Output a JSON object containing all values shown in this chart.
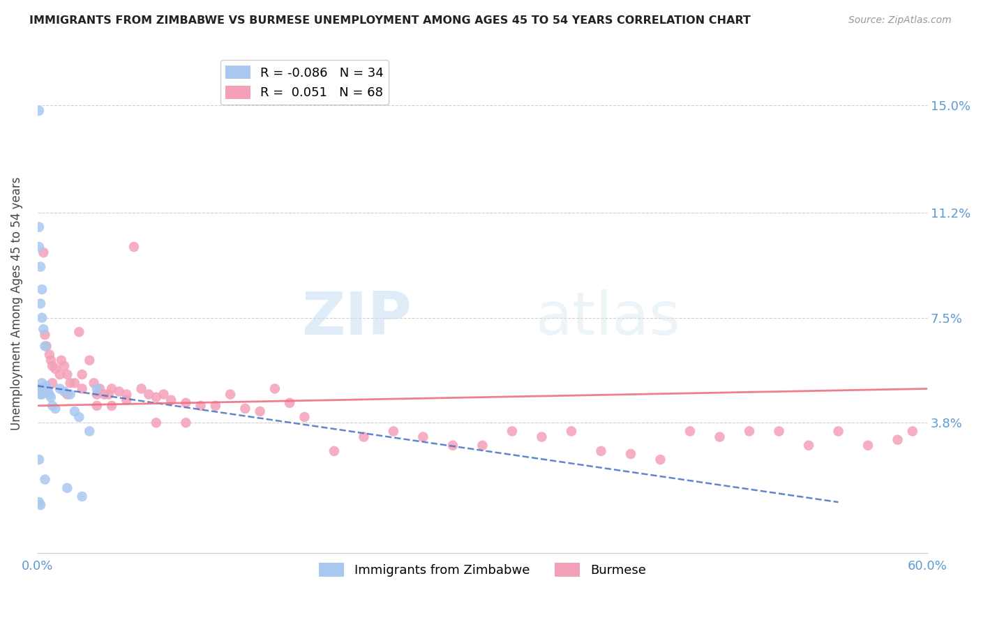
{
  "title": "IMMIGRANTS FROM ZIMBABWE VS BURMESE UNEMPLOYMENT AMONG AGES 45 TO 54 YEARS CORRELATION CHART",
  "source": "Source: ZipAtlas.com",
  "ylabel": "Unemployment Among Ages 45 to 54 years",
  "ytick_labels": [
    "15.0%",
    "11.2%",
    "7.5%",
    "3.8%"
  ],
  "ytick_values": [
    0.15,
    0.112,
    0.075,
    0.038
  ],
  "xlim": [
    0.0,
    0.6
  ],
  "ylim": [
    -0.008,
    0.168
  ],
  "r_zimbabwe": -0.086,
  "n_zimbabwe": 34,
  "r_burmese": 0.051,
  "n_burmese": 68,
  "color_zimbabwe": "#a8c8f0",
  "color_burmese": "#f4a0b8",
  "line_color_zimbabwe": "#4472c4",
  "line_color_burmese": "#f07080",
  "watermark_zip": "ZIP",
  "watermark_atlas": "atlas",
  "legend_label_zimbabwe": "Immigrants from Zimbabwe",
  "legend_label_burmese": "Burmese",
  "zimbabwe_x": [
    0.001,
    0.001,
    0.001,
    0.001,
    0.001,
    0.002,
    0.002,
    0.002,
    0.002,
    0.002,
    0.002,
    0.003,
    0.003,
    0.003,
    0.003,
    0.004,
    0.004,
    0.005,
    0.005,
    0.006,
    0.007,
    0.008,
    0.009,
    0.01,
    0.012,
    0.015,
    0.018,
    0.02,
    0.022,
    0.025,
    0.028,
    0.03,
    0.035,
    0.04
  ],
  "zimbabwe_y": [
    0.148,
    0.107,
    0.1,
    0.025,
    0.01,
    0.093,
    0.08,
    0.05,
    0.049,
    0.048,
    0.009,
    0.085,
    0.075,
    0.052,
    0.048,
    0.071,
    0.05,
    0.065,
    0.018,
    0.051,
    0.049,
    0.048,
    0.047,
    0.044,
    0.043,
    0.05,
    0.049,
    0.015,
    0.048,
    0.042,
    0.04,
    0.012,
    0.035,
    0.05
  ],
  "burmese_x": [
    0.004,
    0.005,
    0.006,
    0.008,
    0.009,
    0.01,
    0.012,
    0.015,
    0.016,
    0.018,
    0.02,
    0.022,
    0.025,
    0.028,
    0.03,
    0.035,
    0.038,
    0.04,
    0.042,
    0.045,
    0.048,
    0.05,
    0.055,
    0.06,
    0.065,
    0.07,
    0.075,
    0.08,
    0.085,
    0.09,
    0.1,
    0.11,
    0.12,
    0.13,
    0.14,
    0.15,
    0.16,
    0.17,
    0.18,
    0.2,
    0.22,
    0.24,
    0.26,
    0.28,
    0.3,
    0.32,
    0.34,
    0.36,
    0.38,
    0.4,
    0.42,
    0.44,
    0.46,
    0.48,
    0.5,
    0.52,
    0.54,
    0.56,
    0.58,
    0.59,
    0.01,
    0.02,
    0.03,
    0.04,
    0.05,
    0.06,
    0.08,
    0.1
  ],
  "burmese_y": [
    0.098,
    0.069,
    0.065,
    0.062,
    0.06,
    0.058,
    0.057,
    0.055,
    0.06,
    0.058,
    0.055,
    0.052,
    0.052,
    0.07,
    0.055,
    0.06,
    0.052,
    0.048,
    0.05,
    0.048,
    0.048,
    0.05,
    0.049,
    0.048,
    0.1,
    0.05,
    0.048,
    0.047,
    0.048,
    0.046,
    0.045,
    0.044,
    0.044,
    0.048,
    0.043,
    0.042,
    0.05,
    0.045,
    0.04,
    0.028,
    0.033,
    0.035,
    0.033,
    0.03,
    0.03,
    0.035,
    0.033,
    0.035,
    0.028,
    0.027,
    0.025,
    0.035,
    0.033,
    0.035,
    0.035,
    0.03,
    0.035,
    0.03,
    0.032,
    0.035,
    0.052,
    0.048,
    0.05,
    0.044,
    0.044,
    0.046,
    0.038,
    0.038
  ],
  "zim_line_x0": 0.0,
  "zim_line_x1": 0.54,
  "zim_line_y0": 0.051,
  "zim_line_y1": 0.01,
  "bur_line_x0": 0.0,
  "bur_line_x1": 0.6,
  "bur_line_y0": 0.044,
  "bur_line_y1": 0.05
}
